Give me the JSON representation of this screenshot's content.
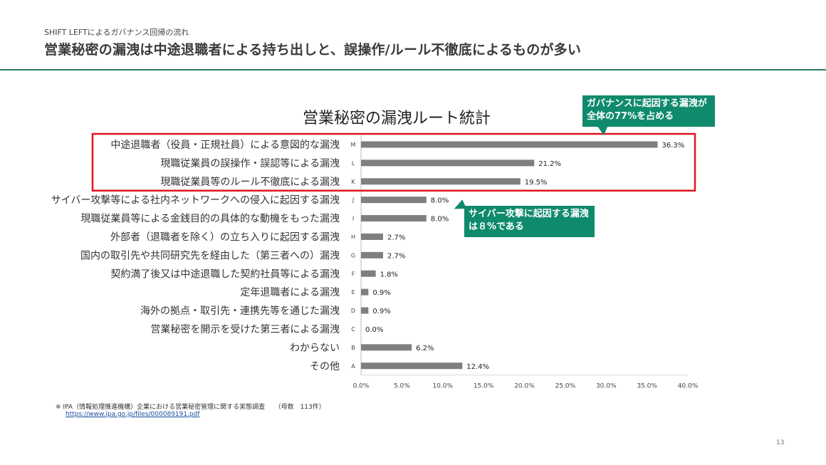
{
  "header": {
    "subtitle": "SHIFT LEFTによるガバナンス回帰の流れ",
    "title": "営業秘密の漏洩は中途退職者による持ち出しと、誤操作/ルール不徹底によるものが多い"
  },
  "chart_data": {
    "type": "bar",
    "orientation": "horizontal",
    "title": "営業秘密の漏洩ルート統計",
    "categories": [
      "中途退職者（役員・正規社員）による意図的な漏洩",
      "現職従業員の誤操作・誤認等による漏洩",
      "現職従業員等のルール不徹底による漏洩",
      "サイバー攻撃等による社内ネットワークへの侵入に起因する漏洩",
      "現職従業員等による金銭目的の具体的な動機をもった漏洩",
      "外部者（退職者を除く）の立ち入りに起因する漏洩",
      "国内の取引先や共同研究先を経由した（第三者への）漏洩",
      "契約満了後又は中途退職した契約社員等による漏洩",
      "定年退職者による漏洩",
      "海外の拠点・取引先・連携先等を通じた漏洩",
      "営業秘密を開示を受けた第三者による漏洩",
      "わからない",
      "その他"
    ],
    "codes": [
      "M",
      "L",
      "K",
      "J",
      "I",
      "H",
      "G",
      "F",
      "E",
      "D",
      "C",
      "B",
      "A"
    ],
    "values": [
      36.3,
      21.2,
      19.5,
      8.0,
      8.0,
      2.7,
      2.7,
      1.8,
      0.9,
      0.9,
      0.0,
      6.2,
      12.4
    ],
    "value_labels": [
      "36.3%",
      "21.2%",
      "19.5%",
      "8.0%",
      "8.0%",
      "2.7%",
      "2.7%",
      "1.8%",
      "0.9%",
      "0.9%",
      "0.0%",
      "6.2%",
      "12.4%"
    ],
    "xlim": [
      0,
      40
    ],
    "x_ticks": [
      "0.0%",
      "5.0%",
      "10.0%",
      "15.0%",
      "20.0%",
      "25.0%",
      "30.0%",
      "35.0%",
      "40.0%"
    ],
    "highlight_count": 3,
    "colors": {
      "bar": "#7f7f7f",
      "highlight_box": "#e0141e",
      "callout": "#0f8a6d"
    }
  },
  "callouts": {
    "top": "ガバナンスに起因する漏洩が全体の77%を占める",
    "middle": "サイバー攻撃に起因する漏洩は８%である"
  },
  "footer": {
    "note": "※ IPA（情報処理推進機構）企業における営業秘密管理に関する実態調査　　（母数　113件）",
    "link": "https://www.ipa.go.jp/files/000089191.pdf",
    "page_number": "13"
  }
}
